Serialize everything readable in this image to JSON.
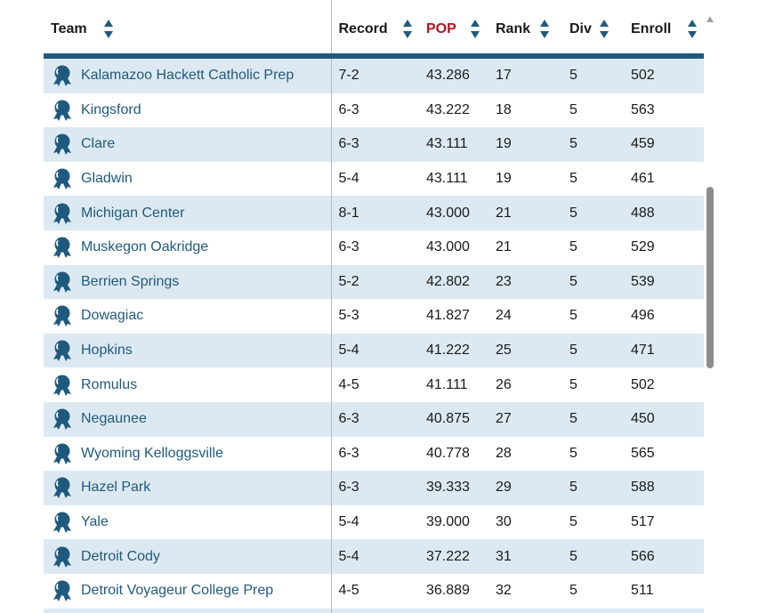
{
  "columns": {
    "team": "Team",
    "record": "Record",
    "pop": "POP",
    "rank": "Rank",
    "div": "Div",
    "enroll": "Enroll"
  },
  "colors": {
    "accent": "#1f5a7e",
    "pop_header": "#b0151f",
    "stripe": "#dde9f2"
  },
  "badge_icon": "award-ribbon-icon",
  "rows": [
    {
      "team": "Kalamazoo Hackett Catholic Prep",
      "record": "7-2",
      "pop": "43.286",
      "rank": "17",
      "div": "5",
      "enroll": "502"
    },
    {
      "team": "Kingsford",
      "record": "6-3",
      "pop": "43.222",
      "rank": "18",
      "div": "5",
      "enroll": "563"
    },
    {
      "team": "Clare",
      "record": "6-3",
      "pop": "43.111",
      "rank": "19",
      "div": "5",
      "enroll": "459"
    },
    {
      "team": "Gladwin",
      "record": "5-4",
      "pop": "43.111",
      "rank": "19",
      "div": "5",
      "enroll": "461"
    },
    {
      "team": "Michigan Center",
      "record": "8-1",
      "pop": "43.000",
      "rank": "21",
      "div": "5",
      "enroll": "488"
    },
    {
      "team": "Muskegon Oakridge",
      "record": "6-3",
      "pop": "43.000",
      "rank": "21",
      "div": "5",
      "enroll": "529"
    },
    {
      "team": "Berrien Springs",
      "record": "5-2",
      "pop": "42.802",
      "rank": "23",
      "div": "5",
      "enroll": "539"
    },
    {
      "team": "Dowagiac",
      "record": "5-3",
      "pop": "41.827",
      "rank": "24",
      "div": "5",
      "enroll": "496"
    },
    {
      "team": "Hopkins",
      "record": "5-4",
      "pop": "41.222",
      "rank": "25",
      "div": "5",
      "enroll": "471"
    },
    {
      "team": "Romulus",
      "record": "4-5",
      "pop": "41.111",
      "rank": "26",
      "div": "5",
      "enroll": "502"
    },
    {
      "team": "Negaunee",
      "record": "6-3",
      "pop": "40.875",
      "rank": "27",
      "div": "5",
      "enroll": "450"
    },
    {
      "team": "Wyoming Kelloggsville",
      "record": "6-3",
      "pop": "40.778",
      "rank": "28",
      "div": "5",
      "enroll": "565"
    },
    {
      "team": "Hazel Park",
      "record": "6-3",
      "pop": "39.333",
      "rank": "29",
      "div": "5",
      "enroll": "588"
    },
    {
      "team": "Yale",
      "record": "5-4",
      "pop": "39.000",
      "rank": "30",
      "div": "5",
      "enroll": "517"
    },
    {
      "team": "Detroit Cody",
      "record": "5-4",
      "pop": "37.222",
      "rank": "31",
      "div": "5",
      "enroll": "566"
    },
    {
      "team": "Detroit Voyageur College Prep",
      "record": "4-5",
      "pop": "36.889",
      "rank": "32",
      "div": "5",
      "enroll": "511"
    },
    {
      "team": "",
      "record": "",
      "pop": "",
      "rank": "",
      "div": "",
      "enroll": ""
    }
  ]
}
